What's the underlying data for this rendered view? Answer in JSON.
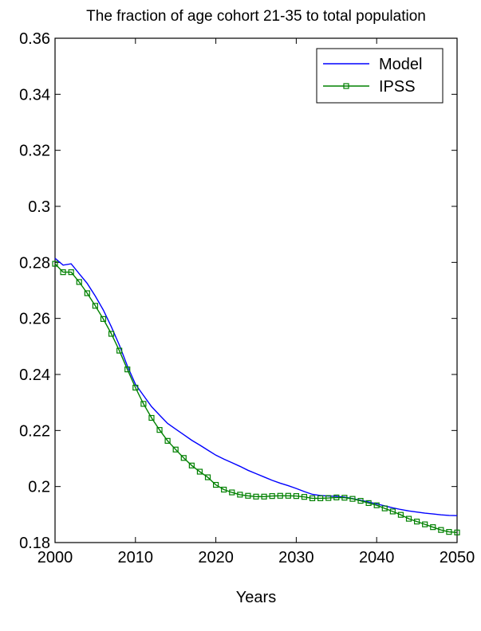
{
  "chart_data": {
    "type": "line",
    "title": "The fraction of age cohort 21-35 to total population",
    "xlabel": "Years",
    "ylabel": "",
    "xlim": [
      2000,
      2050
    ],
    "ylim": [
      0.18,
      0.36
    ],
    "xticks": [
      "2000",
      "2010",
      "2020",
      "2030",
      "2040",
      "2050"
    ],
    "yticks": [
      "0.18",
      "0.2",
      "0.22",
      "0.24",
      "0.26",
      "0.28",
      "0.3",
      "0.32",
      "0.34",
      "0.36"
    ],
    "grid": false,
    "legend_position": "top-right",
    "x": [
      2000,
      2001,
      2002,
      2003,
      2004,
      2005,
      2006,
      2007,
      2008,
      2009,
      2010,
      2011,
      2012,
      2013,
      2014,
      2015,
      2016,
      2017,
      2018,
      2019,
      2020,
      2021,
      2022,
      2023,
      2024,
      2025,
      2026,
      2027,
      2028,
      2029,
      2030,
      2031,
      2032,
      2033,
      2034,
      2035,
      2036,
      2037,
      2038,
      2039,
      2040,
      2041,
      2042,
      2043,
      2044,
      2045,
      2046,
      2047,
      2048,
      2049,
      2050
    ],
    "series": [
      {
        "name": "Model",
        "color": "#0000ff",
        "marker": "none",
        "values": [
          0.2815,
          0.279,
          0.2795,
          0.276,
          0.2725,
          0.268,
          0.263,
          0.257,
          0.2505,
          0.243,
          0.2365,
          0.2325,
          0.2285,
          0.2255,
          0.2225,
          0.2205,
          0.2185,
          0.2165,
          0.2148,
          0.213,
          0.2112,
          0.2098,
          0.2085,
          0.2072,
          0.2058,
          0.2046,
          0.2034,
          0.2022,
          0.2012,
          0.2003,
          0.1993,
          0.1982,
          0.1972,
          0.1968,
          0.1966,
          0.1965,
          0.1962,
          0.1957,
          0.1951,
          0.1945,
          0.1938,
          0.1931,
          0.1924,
          0.1918,
          0.1913,
          0.1909,
          0.1905,
          0.1902,
          0.1899,
          0.1897,
          0.1896
        ]
      },
      {
        "name": "IPSS",
        "color": "#008000",
        "marker": "square",
        "values": [
          0.2795,
          0.2765,
          0.2765,
          0.273,
          0.269,
          0.2645,
          0.2598,
          0.2545,
          0.2485,
          0.2418,
          0.2353,
          0.2295,
          0.2245,
          0.2202,
          0.2163,
          0.2132,
          0.2102,
          0.2075,
          0.2053,
          0.2033,
          0.2006,
          0.1989,
          0.1979,
          0.1971,
          0.1967,
          0.1964,
          0.1964,
          0.1966,
          0.1967,
          0.1967,
          0.1966,
          0.1963,
          0.1958,
          0.1958,
          0.1959,
          0.1961,
          0.196,
          0.1956,
          0.1949,
          0.1941,
          0.1933,
          0.1922,
          0.1911,
          0.1899,
          0.1885,
          0.1875,
          0.1865,
          0.1855,
          0.1845,
          0.1838,
          0.1836
        ]
      }
    ]
  }
}
